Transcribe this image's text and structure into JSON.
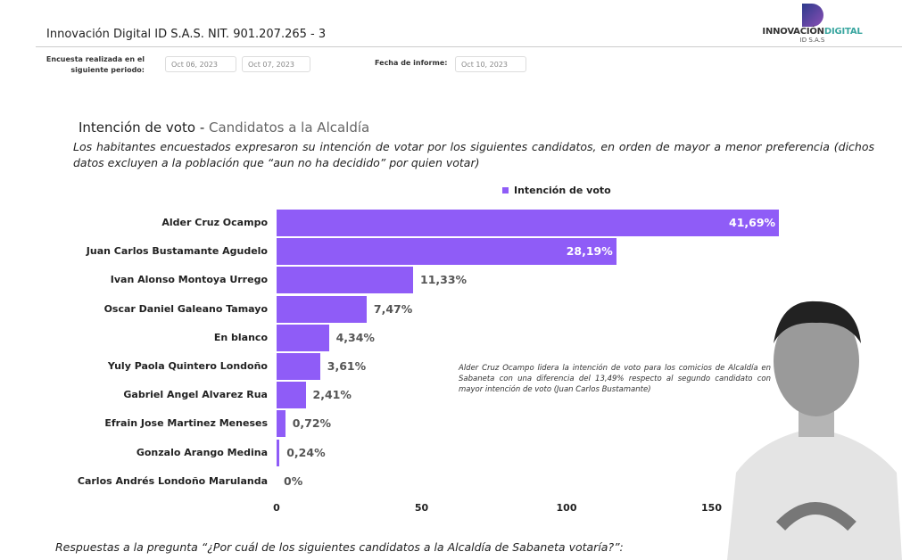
{
  "header": {
    "company": "Innovación Digital ID S.A.S.  NIT. 901.207.265 - 3",
    "period_label": "Encuesta realizada en el siguiente periodo:",
    "period_start": "Oct 06, 2023",
    "period_end": "Oct 07, 2023",
    "report_date_label": "Fecha de informe:",
    "report_date": "Oct 10, 2023",
    "logo": {
      "name_a": "INNOVACIÓN",
      "name_b": "DIGITAL",
      "sub": "ID S.A.S"
    }
  },
  "section": {
    "title_a": "Intención de voto - ",
    "title_b": "Candidatos a la Alcaldía",
    "description": "Los habitantes encuestados expresaron su intención de votar por los siguientes candidatos, en orden de mayor a menor preferencia (dichos datos excluyen a la población que “aun no ha decidido” por quien votar)",
    "note": "Alder Cruz Ocampo lidera la intención de voto para los comicios de Alcaldía en Sabaneta con una diferencia del 13,49% respecto al segundo candidato con mayor intención de voto (Juan Carlos Bustamante)",
    "question": "Respuestas a la pregunta “¿Por cuál de los siguientes candidatos a la Alcaldía de Sabaneta votaría?”:"
  },
  "chart_data": {
    "type": "bar",
    "orientation": "horizontal",
    "legend": "top",
    "bar_color": "#8f5cf7",
    "series": [
      {
        "name": "Intención de voto",
        "values": [
          41.69,
          28.19,
          11.33,
          7.47,
          4.34,
          3.61,
          2.41,
          0.72,
          0.24,
          0
        ]
      }
    ],
    "categories": [
      "Alder Cruz Ocampo",
      "Juan Carlos Bustamante Agudelo",
      "Ivan Alonso Montoya Urrego",
      "Oscar Daniel Galeano Tamayo",
      "En blanco",
      "Yuly Paola Quintero Londoño",
      "Gabriel Angel Alvarez Rua",
      "Efrain Jose Martinez Meneses",
      "Gonzalo  Arango Medina",
      "Carlos Andrés Londoño Marulanda"
    ],
    "data_labels": [
      "41,69%",
      "28,19%",
      "11,33%",
      "7,47%",
      "4,34%",
      "3,61%",
      "2,41%",
      "0,72%",
      "0,24%",
      "0%"
    ],
    "x_ticks": [
      "0",
      "50",
      "100",
      "150"
    ]
  }
}
